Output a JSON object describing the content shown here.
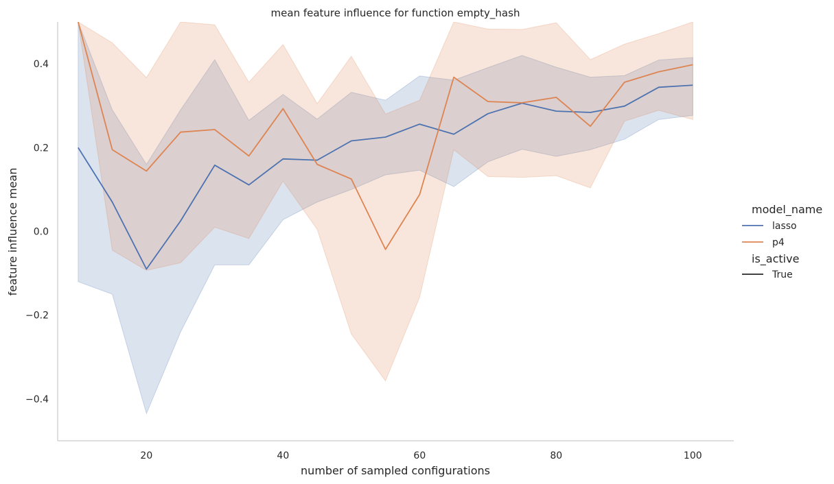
{
  "chart_data": {
    "type": "line",
    "title": "mean feature influence for function empty_hash",
    "xlabel": "number of sampled configurations",
    "ylabel": "feature influence mean",
    "xlim": [
      7,
      106
    ],
    "ylim": [
      -0.5,
      0.5
    ],
    "x_ticks": [
      20,
      40,
      60,
      80,
      100
    ],
    "y_ticks": [
      -0.4,
      -0.2,
      0.0,
      0.2,
      0.4
    ],
    "y_tick_labels": [
      "−0.4",
      "−0.2",
      "0.0",
      "0.2",
      "0.4"
    ],
    "grid": false,
    "legend": {
      "placement": "right",
      "hue_title": "model_name",
      "style_title": "is_active",
      "style_entries": [
        "True"
      ]
    },
    "x": [
      10,
      15,
      20,
      25,
      30,
      35,
      40,
      45,
      50,
      55,
      60,
      65,
      70,
      75,
      80,
      85,
      90,
      95,
      100
    ],
    "series": [
      {
        "name": "lasso",
        "color": "#4c72b0",
        "values": [
          0.2,
          0.07,
          -0.09,
          0.025,
          0.158,
          0.111,
          0.173,
          0.17,
          0.216,
          0.225,
          0.256,
          0.232,
          0.281,
          0.306,
          0.287,
          0.284,
          0.299,
          0.344,
          0.349
        ],
        "ci_low": [
          -0.12,
          -0.15,
          -0.435,
          -0.24,
          -0.08,
          -0.08,
          0.028,
          0.07,
          0.1,
          0.135,
          0.146,
          0.107,
          0.166,
          0.196,
          0.179,
          0.195,
          0.22,
          0.267,
          0.277
        ],
        "ci_high": [
          0.5,
          0.29,
          0.16,
          0.29,
          0.41,
          0.265,
          0.327,
          0.268,
          0.332,
          0.313,
          0.371,
          0.361,
          0.391,
          0.42,
          0.392,
          0.368,
          0.372,
          0.409,
          0.415
        ]
      },
      {
        "name": "p4",
        "color": "#dd8452",
        "values": [
          0.5,
          0.195,
          0.144,
          0.237,
          0.243,
          0.18,
          0.293,
          0.16,
          0.125,
          -0.043,
          0.088,
          0.368,
          0.31,
          0.307,
          0.32,
          0.251,
          0.356,
          0.381,
          0.398
        ],
        "ci_low": [
          0.5,
          -0.045,
          -0.093,
          -0.075,
          0.01,
          -0.017,
          0.12,
          0.005,
          -0.245,
          -0.357,
          -0.157,
          0.195,
          0.131,
          0.129,
          0.133,
          0.104,
          0.263,
          0.289,
          0.267
        ],
        "ci_high": [
          0.5,
          0.45,
          0.367,
          0.5,
          0.493,
          0.356,
          0.446,
          0.305,
          0.418,
          0.28,
          0.313,
          0.5,
          0.483,
          0.482,
          0.498,
          0.41,
          0.447,
          0.472,
          0.5
        ]
      }
    ]
  }
}
